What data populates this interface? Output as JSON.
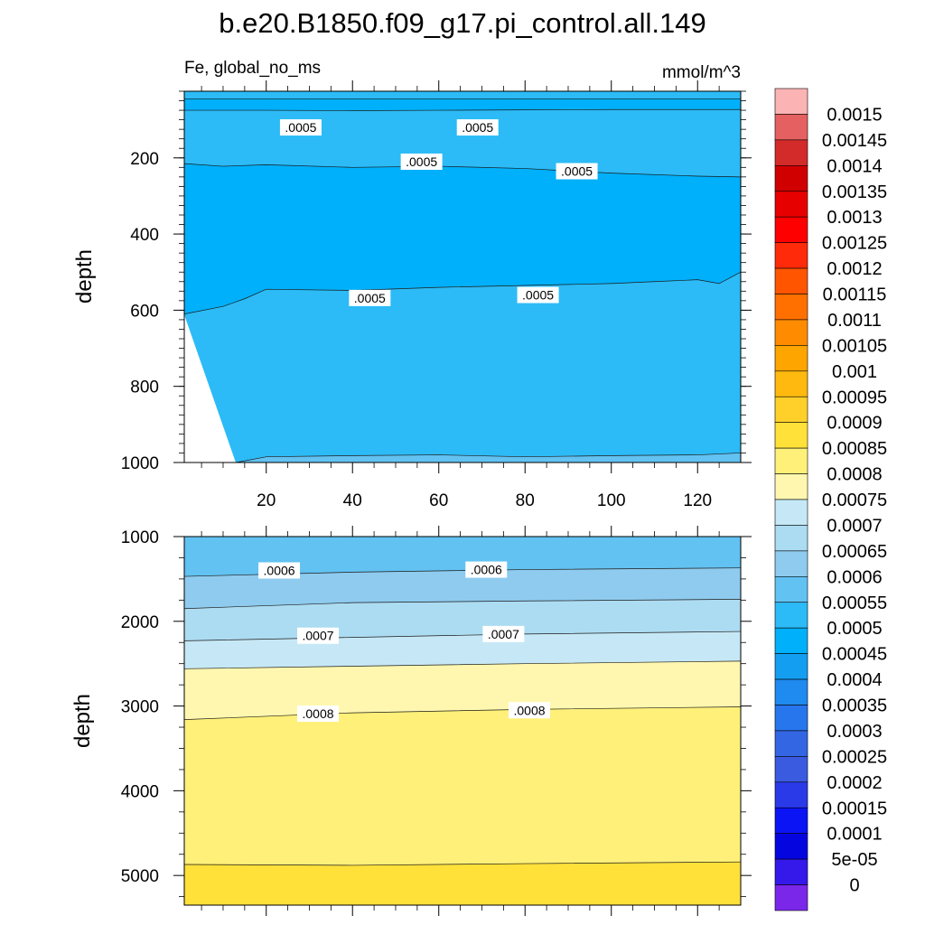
{
  "chart_data": [
    {
      "type": "heatmap",
      "subtype": "filled-contour",
      "title": "b.e20.B1850.f09_g17.pi_control.all.149",
      "subtitle_left": "Fe, global_no_ms",
      "subtitle_right": "mmol/m^3",
      "xlabel": "",
      "ylabel": "depth",
      "xlim": [
        1,
        130
      ],
      "ylim": [
        1000,
        25
      ],
      "y_reversed": true,
      "xticks": [
        20,
        40,
        60,
        80,
        100,
        120
      ],
      "xtick_labels": [
        "20",
        "40",
        "60",
        "80",
        "100",
        "120"
      ],
      "yticks": [
        200,
        400,
        600,
        800,
        1000
      ],
      "ytick_labels": [
        "200",
        "400",
        "600",
        "800",
        "1000"
      ],
      "contour_lines": [
        {
          "level": "0.0005",
          "x": [
            1,
            130
          ],
          "y": [
            45,
            45
          ]
        },
        {
          "level": "0.0005",
          "x": [
            1,
            20,
            40,
            60,
            80,
            100,
            130
          ],
          "y": [
            75,
            75,
            76,
            75,
            74,
            73,
            73
          ]
        },
        {
          "level": "0.0005",
          "x": [
            1,
            10,
            20,
            40,
            60,
            80,
            100,
            120,
            130
          ],
          "y": [
            215,
            222,
            218,
            225,
            222,
            228,
            240,
            248,
            250
          ]
        },
        {
          "level": "0.0005",
          "x": [
            1,
            10,
            15,
            20,
            40,
            60,
            80,
            100,
            110,
            120,
            125,
            130
          ],
          "y": [
            610,
            590,
            570,
            545,
            548,
            540,
            535,
            530,
            525,
            520,
            530,
            500
          ]
        },
        {
          "level": "0.0005",
          "x": [
            13,
            20,
            40,
            60,
            80,
            100,
            120,
            130
          ],
          "y": [
            1000,
            985,
            982,
            980,
            985,
            982,
            980,
            975
          ]
        }
      ],
      "contour_labels": [
        {
          "text": ".0005",
          "x": 28,
          "y": 120
        },
        {
          "text": ".0005",
          "x": 69,
          "y": 120
        },
        {
          "text": ".0005",
          "x": 56,
          "y": 210
        },
        {
          "text": ".0005",
          "x": 92,
          "y": 235
        },
        {
          "text": ".0005",
          "x": 44,
          "y": 568
        },
        {
          "text": ".0005",
          "x": 83,
          "y": 560
        }
      ],
      "fill_bands_depth": [
        {
          "from": 25,
          "to": 45,
          "value": 0.0005
        },
        {
          "from": 45,
          "to": 75,
          "value": 0.00045
        },
        {
          "from": 75,
          "to": 220,
          "value": 0.0005
        },
        {
          "from": 220,
          "to": 545,
          "value": 0.00045
        },
        {
          "from": 545,
          "to": 985,
          "value": 0.0005
        },
        {
          "from": 985,
          "to": 1000,
          "value": 0.00055
        }
      ]
    },
    {
      "type": "heatmap",
      "subtype": "filled-contour",
      "xlabel": "",
      "ylabel": "depth",
      "xlim": [
        1,
        130
      ],
      "ylim": [
        5350,
        1000
      ],
      "y_reversed": true,
      "xticks": [
        20,
        40,
        60,
        80,
        100,
        120
      ],
      "yticks": [
        1000,
        2000,
        3000,
        4000,
        5000
      ],
      "ytick_labels": [
        "1000",
        "2000",
        "3000",
        "4000",
        "5000"
      ],
      "contour_lines": [
        {
          "level": "0.0006",
          "x": [
            1,
            40,
            80,
            130
          ],
          "y": [
            1470,
            1420,
            1390,
            1370
          ]
        },
        {
          "level": "0.00065",
          "x": [
            1,
            40,
            80,
            130
          ],
          "y": [
            1850,
            1780,
            1760,
            1740
          ]
        },
        {
          "level": "0.0007",
          "x": [
            1,
            40,
            80,
            130
          ],
          "y": [
            2230,
            2190,
            2150,
            2120
          ]
        },
        {
          "level": "0.00075",
          "x": [
            1,
            40,
            80,
            130
          ],
          "y": [
            2560,
            2530,
            2500,
            2470
          ]
        },
        {
          "level": "0.0008",
          "x": [
            1,
            40,
            80,
            130
          ],
          "y": [
            3160,
            3080,
            3040,
            3010
          ]
        },
        {
          "level": "0.00085",
          "x": [
            1,
            40,
            80,
            130
          ],
          "y": [
            4870,
            4880,
            4860,
            4840
          ]
        }
      ],
      "contour_labels": [
        {
          "text": ".0006",
          "x": 23,
          "y": 1400
        },
        {
          "text": ".0006",
          "x": 71,
          "y": 1390
        },
        {
          "text": ".0007",
          "x": 32,
          "y": 2170
        },
        {
          "text": ".0007",
          "x": 75,
          "y": 2150
        },
        {
          "text": ".0008",
          "x": 32,
          "y": 3090
        },
        {
          "text": ".0008",
          "x": 81,
          "y": 3050
        }
      ],
      "fill_bands_depth": [
        {
          "from": 1000,
          "to": 1470,
          "value": 0.00055
        },
        {
          "from": 1470,
          "to": 1850,
          "value": 0.0006
        },
        {
          "from": 1850,
          "to": 2230,
          "value": 0.00065
        },
        {
          "from": 2230,
          "to": 2560,
          "value": 0.0007
        },
        {
          "from": 2560,
          "to": 3160,
          "value": 0.00075
        },
        {
          "from": 3160,
          "to": 4870,
          "value": 0.0008
        },
        {
          "from": 4870,
          "to": 5350,
          "value": 0.00085
        }
      ]
    }
  ],
  "colorbar": {
    "labels": [
      "0.0015",
      "0.00145",
      "0.0014",
      "0.00135",
      "0.0013",
      "0.00125",
      "0.0012",
      "0.00115",
      "0.0011",
      "0.00105",
      "0.001",
      "0.00095",
      "0.0009",
      "0.00085",
      "0.0008",
      "0.00075",
      "0.0007",
      "0.00065",
      "0.0006",
      "0.00055",
      "0.0005",
      "0.00045",
      "0.0004",
      "0.00035",
      "0.0003",
      "0.00025",
      "0.0002",
      "0.00015",
      "0.0001",
      "5e-05",
      "0"
    ],
    "levels": [
      0.0015,
      0.00145,
      0.0014,
      0.00135,
      0.0013,
      0.00125,
      0.0012,
      0.00115,
      0.0011,
      0.00105,
      0.001,
      0.00095,
      0.0009,
      0.00085,
      0.0008,
      0.00075,
      0.0007,
      0.00065,
      0.0006,
      0.00055,
      0.0005,
      0.00045,
      0.0004,
      0.00035,
      0.0003,
      0.00025,
      0.0002,
      0.00015,
      0.0001,
      5e-05,
      0
    ],
    "colors": [
      "#fbb3b3",
      "#e56161",
      "#d32a2a",
      "#d10000",
      "#e60000",
      "#ff0000",
      "#ff2a0a",
      "#ff5500",
      "#ff7000",
      "#ff8c00",
      "#ffa500",
      "#ffb90f",
      "#ffd02a",
      "#ffe13a",
      "#fff07a",
      "#fff7b0",
      "#c6e8f6",
      "#acdcf2",
      "#8ecbef",
      "#62c2f2",
      "#2cbbf6",
      "#00b0fa",
      "#149ef2",
      "#1f8aef",
      "#2776ee",
      "#3366e3",
      "#3a5ae0",
      "#2a3ae8",
      "#0a14f5",
      "#0505e0",
      "#3518ea",
      "#7b27ea"
    ]
  }
}
